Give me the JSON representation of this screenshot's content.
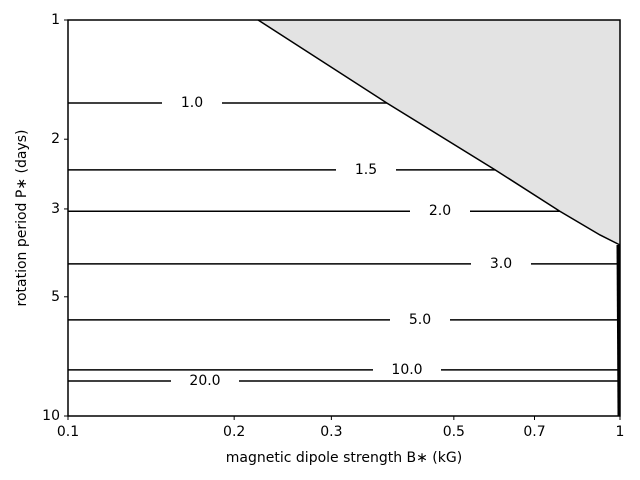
{
  "chart_data": {
    "type": "contour",
    "xlabel": "magnetic dipole strength B∗ (kG)",
    "ylabel": "rotation period P∗ (days)",
    "xlog": true,
    "ylog": true,
    "xlim": [
      0.1,
      1
    ],
    "ylim": [
      10,
      1
    ],
    "xticks": [
      0.1,
      0.2,
      0.3,
      0.5,
      0.7,
      1
    ],
    "yticks": [
      1,
      2,
      3,
      5,
      10
    ],
    "color": "#000000",
    "region": {
      "color": "#e3e3e3",
      "x": [
        0.221,
        0.378,
        0.594,
        0.778,
        0.92,
        1
      ],
      "y": [
        1,
        1.62,
        2.39,
        3.04,
        3.49,
        3.7
      ]
    },
    "contours": [
      {
        "level": {
          "value": 1,
          "label": "1.0"
        },
        "x": [
          0.1,
          0.378
        ],
        "y": [
          1.62,
          1.62
        ]
      },
      {
        "level": {
          "value": 1.5,
          "label": "1.5"
        },
        "x": [
          0.1,
          0.594
        ],
        "y": [
          2.39,
          2.39
        ]
      },
      {
        "level": {
          "value": 2,
          "label": "2.0"
        },
        "x": [
          0.1,
          0.778
        ],
        "y": [
          3.04,
          3.04
        ]
      },
      {
        "level": {
          "value": 3,
          "label": "3.0"
        },
        "x": [
          0.1,
          0.995
        ],
        "y": [
          4.13,
          4.13
        ]
      },
      {
        "level": {
          "value": 5,
          "label": "5.0"
        },
        "x": [
          0.1,
          0.995
        ],
        "y": [
          5.72,
          5.72
        ]
      },
      {
        "level": {
          "value": 10,
          "label": "10.0"
        },
        "x": [
          0.1,
          0.995
        ],
        "y": [
          7.65,
          7.65
        ]
      },
      {
        "level": {
          "value": 20,
          "label": "20.0"
        },
        "x": [
          0.1,
          0.995
        ],
        "y": [
          8.16,
          8.16
        ]
      }
    ]
  }
}
